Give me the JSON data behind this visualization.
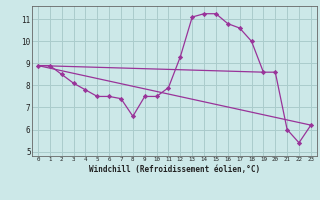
{
  "bg_color": "#cce8e8",
  "grid_color": "#aacccc",
  "line_color": "#993399",
  "marker_color": "#993399",
  "xlabel": "Windchill (Refroidissement éolien,°C)",
  "xlim": [
    -0.5,
    23.5
  ],
  "ylim": [
    4.8,
    11.6
  ],
  "yticks": [
    5,
    6,
    7,
    8,
    9,
    10,
    11
  ],
  "xticks": [
    0,
    1,
    2,
    3,
    4,
    5,
    6,
    7,
    8,
    9,
    10,
    11,
    12,
    13,
    14,
    15,
    16,
    17,
    18,
    19,
    20,
    21,
    22,
    23
  ],
  "line1_x": [
    0,
    1,
    2,
    3,
    4,
    5,
    6,
    7,
    8,
    9,
    10,
    11,
    12,
    13,
    14,
    15,
    16,
    17,
    18,
    19,
    20,
    21,
    22,
    23
  ],
  "line1_y": [
    8.9,
    8.9,
    8.5,
    8.1,
    7.8,
    7.5,
    7.5,
    7.4,
    6.6,
    7.5,
    7.5,
    7.9,
    9.3,
    11.1,
    11.25,
    11.25,
    10.8,
    10.6,
    10.0,
    8.6,
    8.6,
    6.0,
    5.4,
    6.2
  ],
  "line3_x": [
    0,
    19
  ],
  "line3_y": [
    8.9,
    8.6
  ],
  "line4_x": [
    0,
    23
  ],
  "line4_y": [
    8.9,
    6.2
  ],
  "tick_fontsize": 5.0,
  "xlabel_fontsize": 5.5
}
